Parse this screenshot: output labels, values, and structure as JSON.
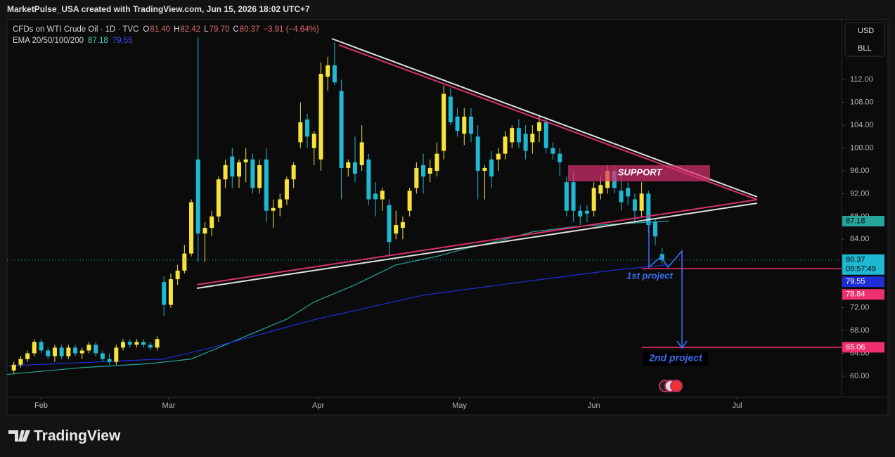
{
  "header": {
    "credit": "MarketPulse_USA created with TradingView.com, Jun 15, 2026 18:02 UTC+7",
    "symbol": "CFDs on WTI Crude Oil · 1D · TVC",
    "ohlc": [
      {
        "key": "O",
        "value": "81.40"
      },
      {
        "key": "H",
        "value": "82.42"
      },
      {
        "key": "L",
        "value": "79.70"
      },
      {
        "key": "C",
        "value": "80.37"
      }
    ],
    "change": "−3.91 (−4.64%)",
    "indicator": "EMA 20/50/100/200",
    "currency": "USD",
    "unit": "BLL"
  },
  "chart_data": {
    "type": "candlestick",
    "up_color": "#f7e33b",
    "down_color": "#1fb8d3",
    "open": [
      61,
      62,
      63,
      64,
      66,
      64.5,
      63.5,
      65,
      63.5,
      65,
      64,
      64.5,
      65.5,
      64,
      63,
      62.5,
      65,
      66,
      65.5,
      66,
      65.5,
      65,
      76.5,
      72.5,
      77,
      78.5,
      81.5,
      98,
      85,
      86,
      88,
      94.5,
      98.5,
      95,
      97.5,
      98,
      93,
      98,
      89,
      89.5,
      91,
      94.5,
      101,
      105,
      100,
      98,
      112.5,
      114.5,
      110,
      96.5,
      97.5,
      97,
      98,
      92,
      91,
      90,
      85,
      86,
      89,
      93,
      97,
      95.5,
      96,
      99.5,
      109,
      105.5,
      102.5,
      105.5,
      102,
      96,
      98,
      98,
      99,
      101,
      103.5,
      102.5,
      101,
      103,
      104.5,
      100,
      99,
      94,
      94,
      89,
      89,
      89,
      92,
      93,
      96,
      92.5,
      93,
      91,
      89,
      92,
      87,
      81.4
    ],
    "high": [
      62.5,
      63.5,
      64.5,
      66.5,
      66.5,
      65,
      65.5,
      65.5,
      65.5,
      65.5,
      65,
      66,
      66,
      64.5,
      64,
      65.5,
      66.5,
      66.5,
      66.5,
      66.5,
      66,
      67,
      77.5,
      78,
      79.5,
      83,
      91,
      119.5,
      87,
      89,
      95,
      98,
      100,
      98,
      100,
      99,
      98,
      100,
      91,
      92,
      95,
      97.5,
      108,
      106,
      103,
      115,
      116,
      118.5,
      112,
      98,
      102,
      104,
      99,
      94,
      93,
      91,
      89,
      88,
      93,
      97.5,
      99,
      98,
      101,
      111,
      110.5,
      107,
      107,
      107,
      104,
      97,
      99.5,
      100,
      103,
      104,
      105,
      104,
      104,
      105.5,
      105,
      101,
      100,
      95,
      96,
      90,
      90,
      94,
      95,
      97,
      97,
      95,
      94,
      92,
      94,
      92.5,
      87.5,
      82.42
    ],
    "low": [
      60.5,
      61.5,
      62.5,
      63.5,
      64,
      63,
      62.5,
      63,
      63,
      63.5,
      63,
      64,
      63.5,
      62.5,
      62,
      62,
      64.5,
      65,
      65,
      65,
      64.5,
      64.5,
      70.5,
      72,
      76,
      78,
      81,
      80,
      80,
      84.5,
      87,
      93,
      93,
      93,
      94,
      92,
      92,
      87,
      86,
      88,
      90,
      93,
      100,
      100,
      97,
      96,
      110,
      111,
      91,
      95,
      94,
      96,
      90,
      88,
      89,
      81,
      84,
      84,
      88,
      92,
      92,
      94,
      95,
      98,
      104,
      102,
      100.5,
      101,
      91,
      91,
      93,
      96,
      98,
      100,
      100,
      98,
      99,
      101,
      99,
      98,
      95,
      88,
      87,
      86.5,
      87,
      88,
      91,
      92,
      92,
      89,
      90,
      87,
      88,
      85,
      83,
      79.7
    ],
    "close": [
      62,
      63,
      64,
      66,
      64.5,
      63.5,
      65,
      63.5,
      65,
      64,
      64.5,
      65.5,
      64,
      63,
      62.5,
      65,
      66,
      65.5,
      66,
      65.5,
      65,
      66.5,
      72.5,
      77,
      78.5,
      81.5,
      90.5,
      85,
      86,
      88,
      94.5,
      97,
      95,
      97.5,
      98,
      93,
      97,
      89,
      89.5,
      91,
      94.5,
      97,
      104.5,
      102,
      102.5,
      113,
      114.5,
      111.5,
      96.5,
      97.5,
      95.5,
      101,
      91,
      91,
      92.5,
      83.5,
      86.5,
      87,
      92.5,
      96.5,
      95,
      96.5,
      99,
      109.5,
      104.5,
      103,
      105.5,
      102.5,
      96,
      96.5,
      95,
      99,
      102,
      103.5,
      101,
      99.5,
      102.5,
      104.5,
      100,
      99,
      97.5,
      89,
      89,
      88,
      88.5,
      93,
      93.5,
      96,
      93,
      90.5,
      91.5,
      89,
      92,
      86.5,
      84.5,
      80.37
    ],
    "series": [
      {
        "color": "#26a69a",
        "x": [
          -1,
          10,
          20,
          26,
          32,
          40,
          44,
          50,
          56,
          62,
          66,
          72,
          76,
          82,
          90,
          96
        ],
        "values": [
          60.3,
          61.5,
          62.2,
          63,
          66,
          70,
          73,
          76,
          79.5,
          81,
          82.3,
          84,
          85.3,
          86.2,
          86.8,
          87.18
        ]
      },
      {
        "color": "#1f2fd6",
        "x": [
          -1,
          22,
          29,
          44,
          60,
          75,
          88,
          96
        ],
        "values": [
          61.8,
          63,
          65,
          69.9,
          74.2,
          76.6,
          78.6,
          79.55
        ]
      }
    ],
    "price_lines": [
      {
        "value": 78.84,
        "color": "#f0306e"
      },
      {
        "value": 65.06,
        "color": "#f0306e"
      }
    ],
    "countdown": "09:57:49",
    "xlim": [
      -1,
      121.3
    ],
    "xticks": [
      {
        "value": 4,
        "label": "Feb"
      },
      {
        "value": 22.7,
        "label": "Mar"
      },
      {
        "value": 44.6,
        "label": "Apr"
      },
      {
        "value": 65.3,
        "label": "May"
      },
      {
        "value": 85,
        "label": "Jun"
      },
      {
        "value": 106,
        "label": "Jul"
      }
    ],
    "ylim": [
      56.3,
      122.5
    ],
    "yticks": [
      {
        "value": 60,
        "label": "60.00"
      },
      {
        "value": 64,
        "label": "64.00"
      },
      {
        "value": 68,
        "label": "68.00"
      },
      {
        "value": 72,
        "label": "72.00"
      },
      {
        "value": 84,
        "label": "84.00"
      },
      {
        "value": 88,
        "label": "88.00"
      },
      {
        "value": 92,
        "label": "92.00"
      },
      {
        "value": 96,
        "label": "96.00"
      },
      {
        "value": 100,
        "label": "100.00"
      },
      {
        "value": 104,
        "label": "104.00"
      },
      {
        "value": 108,
        "label": "108.00"
      },
      {
        "value": 112,
        "label": "112.00"
      }
    ]
  },
  "annotations": {
    "support": "SUPPORT",
    "first": "1st project",
    "second": "2nd project"
  },
  "footer": {
    "brand": "TradingView"
  }
}
